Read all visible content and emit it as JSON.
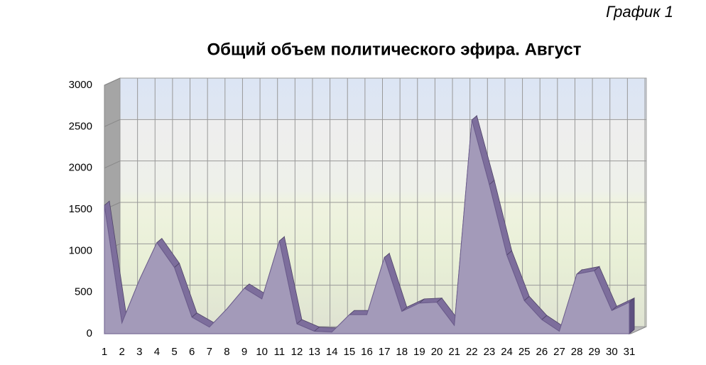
{
  "chart_data": {
    "type": "area3d",
    "title": "Общий объем политического эфира. Август",
    "corner_label": "График 1",
    "categories": [
      1,
      2,
      3,
      4,
      5,
      6,
      7,
      8,
      9,
      10,
      11,
      12,
      13,
      14,
      15,
      16,
      17,
      18,
      19,
      20,
      21,
      22,
      23,
      24,
      25,
      26,
      27,
      28,
      29,
      30,
      31
    ],
    "values": [
      1550,
      130,
      650,
      1100,
      800,
      200,
      80,
      300,
      550,
      420,
      1120,
      120,
      30,
      20,
      230,
      230,
      920,
      270,
      370,
      380,
      100,
      2580,
      1800,
      950,
      400,
      170,
      30,
      720,
      760,
      280,
      380
    ],
    "color": "#a39ab9",
    "ylim": [
      0,
      3000
    ],
    "yticks": [
      0,
      500,
      1000,
      1500,
      2000,
      2500,
      3000
    ],
    "grid": true
  }
}
